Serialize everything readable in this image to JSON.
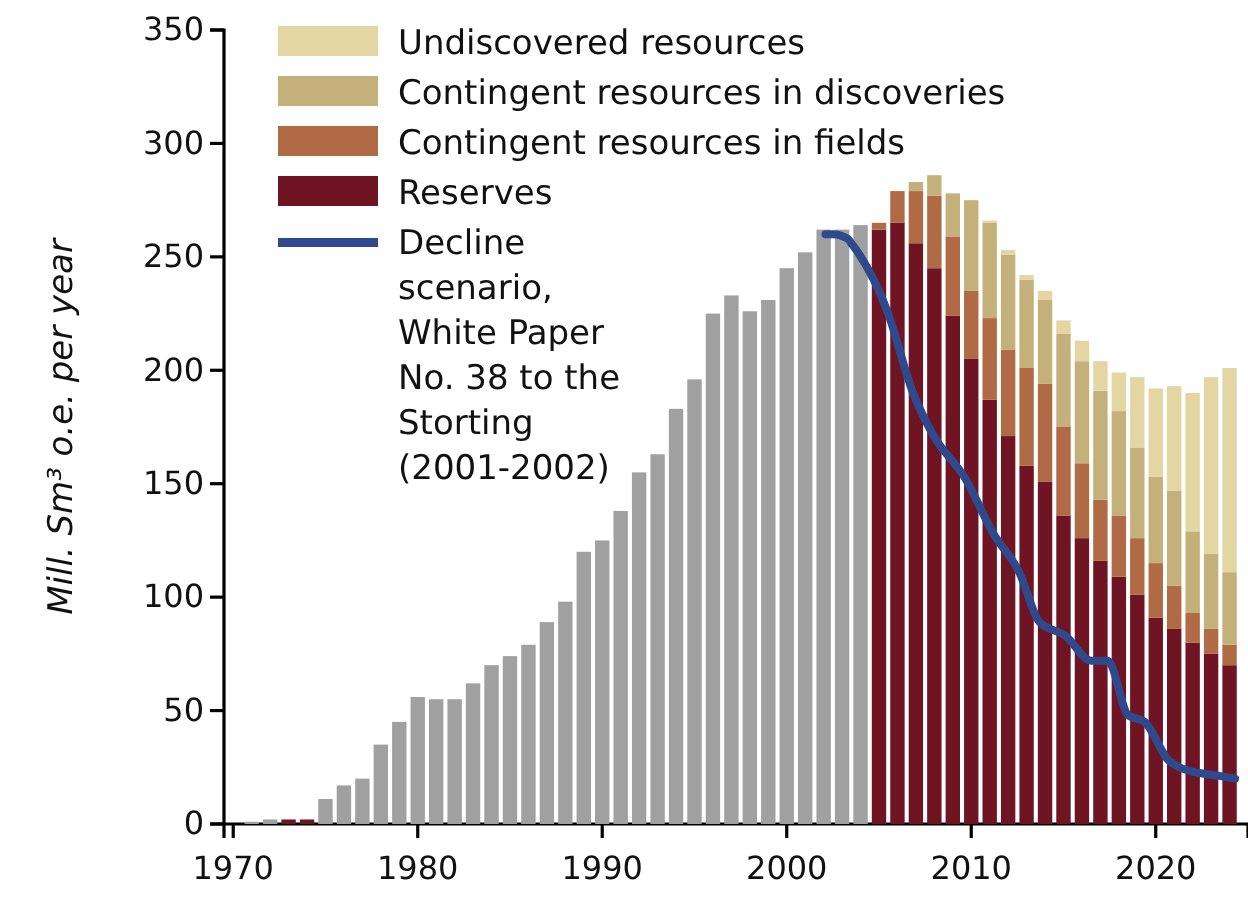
{
  "chart_data": {
    "type": "bar",
    "stacked": true,
    "ylabel": "Mill. Sm³ o.e. per year",
    "x": [
      1971,
      1972,
      1973,
      1974,
      1975,
      1976,
      1977,
      1978,
      1979,
      1980,
      1981,
      1982,
      1983,
      1984,
      1985,
      1986,
      1987,
      1988,
      1989,
      1990,
      1991,
      1992,
      1993,
      1994,
      1995,
      1996,
      1997,
      1998,
      1999,
      2000,
      2001,
      2002,
      2003,
      2004,
      2005,
      2006,
      2007,
      2008,
      2009,
      2010,
      2011,
      2012,
      2013,
      2014,
      2015,
      2016,
      2017,
      2018,
      2019,
      2020,
      2021,
      2022,
      2023,
      2024
    ],
    "xlim": [
      1969.5,
      2025
    ],
    "xticks": [
      1970,
      1980,
      1990,
      2000,
      2010,
      2020
    ],
    "ylim": [
      0,
      350
    ],
    "yticks": [
      0,
      50,
      100,
      150,
      200,
      250,
      300,
      350
    ],
    "legend": "top left",
    "series": [
      {
        "color": "#a0a0a0",
        "values": [
          1,
          2,
          null,
          null,
          11,
          17,
          20,
          35,
          45,
          56,
          55,
          55,
          62,
          70,
          74,
          79,
          89,
          98,
          120,
          125,
          138,
          155,
          163,
          183,
          196,
          225,
          233,
          226,
          231,
          245,
          252,
          262,
          262,
          264,
          null,
          null,
          null,
          null,
          null,
          null,
          null,
          null,
          null,
          null,
          null,
          null,
          null,
          null,
          null,
          null,
          null,
          null,
          null,
          null
        ]
      },
      {
        "name": "Reserves",
        "color": "#6e1423",
        "values": [
          null,
          null,
          2,
          2,
          null,
          null,
          null,
          null,
          null,
          null,
          null,
          null,
          null,
          null,
          null,
          null,
          null,
          null,
          null,
          null,
          null,
          null,
          null,
          null,
          null,
          null,
          null,
          null,
          null,
          null,
          null,
          null,
          null,
          null,
          262,
          265,
          256,
          245,
          224,
          205,
          187,
          171,
          158,
          151,
          136,
          126,
          116,
          109,
          101,
          91,
          86,
          80,
          75,
          70
        ]
      },
      {
        "name": "Contingent resources in fields",
        "color": "#b06a45",
        "values": [
          null,
          null,
          null,
          null,
          null,
          null,
          null,
          null,
          null,
          null,
          null,
          null,
          null,
          null,
          null,
          null,
          null,
          null,
          null,
          null,
          null,
          null,
          null,
          null,
          null,
          null,
          null,
          null,
          null,
          null,
          null,
          null,
          null,
          null,
          3,
          14,
          23,
          32,
          35,
          30,
          36,
          38,
          43,
          43,
          39,
          33,
          27,
          27,
          25,
          24,
          19,
          13,
          11,
          9
        ]
      },
      {
        "name": "Contingent resources in discoveries",
        "color": "#c3b07a",
        "values": [
          null,
          null,
          null,
          null,
          null,
          null,
          null,
          null,
          null,
          null,
          null,
          null,
          null,
          null,
          null,
          null,
          null,
          null,
          null,
          null,
          null,
          null,
          null,
          null,
          null,
          null,
          null,
          null,
          null,
          null,
          null,
          null,
          null,
          null,
          null,
          null,
          4,
          9,
          19,
          40,
          42,
          42,
          39,
          37,
          41,
          45,
          48,
          46,
          40,
          38,
          42,
          36,
          33,
          32
        ]
      },
      {
        "name": "Undiscovered resources",
        "color": "#e3d6a3",
        "values": [
          null,
          null,
          null,
          null,
          null,
          null,
          null,
          null,
          null,
          null,
          null,
          null,
          null,
          null,
          null,
          null,
          null,
          null,
          null,
          null,
          null,
          null,
          null,
          null,
          null,
          null,
          null,
          null,
          null,
          null,
          null,
          null,
          null,
          null,
          null,
          null,
          null,
          null,
          null,
          null,
          1,
          2,
          2,
          4,
          6,
          9,
          13,
          17,
          31,
          39,
          46,
          61,
          78,
          90
        ]
      },
      {
        "name": "Decline scenario, White Paper No. 38 to the Storting (2001-2002)",
        "type": "line",
        "color": "#2e4a8c",
        "x": [
          2002.1,
          2002.5,
          2003.3,
          2003.5,
          2005.5,
          2006.8,
          2007.9,
          2009.7,
          2011.2,
          2012.6,
          2013.7,
          2015.1,
          2016.5,
          2017.4,
          2018.5,
          2019.4,
          2020.7,
          2021.6,
          2023.6,
          2024.3
        ],
        "values": [
          260,
          260,
          258,
          256,
          225,
          191,
          172,
          152,
          128,
          111,
          89,
          83,
          72,
          72,
          48,
          45,
          28,
          24,
          21,
          20
        ]
      }
    ]
  }
}
